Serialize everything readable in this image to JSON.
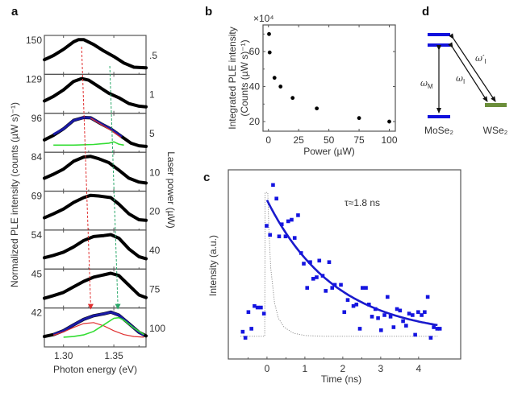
{
  "panels": {
    "a": {
      "label": "a"
    },
    "b": {
      "label": "b"
    },
    "c": {
      "label": "c"
    },
    "d": {
      "label": "d"
    }
  },
  "chart_data": [
    {
      "id": "a",
      "type": "line",
      "title": "",
      "xlabel": "Photon energy (eV)",
      "ylabel": "Normalized PLE intensity (counts (µW s)⁻¹)",
      "right_label": "Laser power (µW)",
      "xlim": [
        1.281,
        1.382
      ],
      "x_ticks": [
        1.3,
        1.35
      ],
      "x_tick_labels": [
        "1.30",
        "1.35"
      ],
      "colors": {
        "data": "#000000",
        "fit_total": "#1a1aa6",
        "fit_red": "#e03030",
        "fit_green": "#33dd33",
        "guide_red": "#e03030",
        "guide_green": "#2aa86a"
      },
      "guides": {
        "red": {
          "energy_top": 1.318,
          "energy_bottom": 1.327
        },
        "green": {
          "energy_top": 1.346,
          "energy_bottom": 1.354
        }
      },
      "subpanels": [
        {
          "power": ".5",
          "max_label": "150",
          "data": [
            [
              1.281,
              0.35
            ],
            [
              1.29,
              0.48
            ],
            [
              1.3,
              0.67
            ],
            [
              1.31,
              0.9
            ],
            [
              1.315,
              0.97
            ],
            [
              1.32,
              0.97
            ],
            [
              1.33,
              0.82
            ],
            [
              1.34,
              0.62
            ],
            [
              1.35,
              0.45
            ],
            [
              1.36,
              0.25
            ],
            [
              1.37,
              0.12
            ],
            [
              1.382,
              0.1
            ]
          ]
        },
        {
          "power": "1",
          "max_label": "129",
          "data": [
            [
              1.281,
              0.28
            ],
            [
              1.29,
              0.42
            ],
            [
              1.3,
              0.62
            ],
            [
              1.31,
              0.88
            ],
            [
              1.318,
              0.97
            ],
            [
              1.325,
              0.92
            ],
            [
              1.335,
              0.72
            ],
            [
              1.345,
              0.52
            ],
            [
              1.355,
              0.38
            ],
            [
              1.365,
              0.2
            ],
            [
              1.375,
              0.12
            ],
            [
              1.382,
              0.1
            ]
          ]
        },
        {
          "power": "5",
          "max_label": "96",
          "data": [
            [
              1.281,
              0.28
            ],
            [
              1.29,
              0.42
            ],
            [
              1.3,
              0.62
            ],
            [
              1.31,
              0.88
            ],
            [
              1.32,
              0.97
            ],
            [
              1.327,
              0.96
            ],
            [
              1.337,
              0.78
            ],
            [
              1.347,
              0.62
            ],
            [
              1.357,
              0.4
            ],
            [
              1.367,
              0.18
            ],
            [
              1.375,
              0.1
            ],
            [
              1.382,
              0.08
            ]
          ],
          "fit_total": [
            [
              1.29,
              0.45
            ],
            [
              1.3,
              0.62
            ],
            [
              1.31,
              0.88
            ],
            [
              1.32,
              0.97
            ],
            [
              1.327,
              0.96
            ],
            [
              1.337,
              0.78
            ],
            [
              1.347,
              0.62
            ],
            [
              1.358,
              0.38
            ]
          ],
          "fit_red": [
            [
              1.327,
              0.95
            ],
            [
              1.337,
              0.76
            ],
            [
              1.347,
              0.58
            ],
            [
              1.357,
              0.36
            ]
          ],
          "fit_green": [
            [
              1.29,
              0.12
            ],
            [
              1.31,
              0.12
            ],
            [
              1.33,
              0.14
            ],
            [
              1.345,
              0.18
            ],
            [
              1.35,
              0.22
            ],
            [
              1.355,
              0.15
            ],
            [
              1.36,
              0.12
            ]
          ]
        },
        {
          "power": "10",
          "max_label": "84",
          "data": [
            [
              1.281,
              0.3
            ],
            [
              1.29,
              0.42
            ],
            [
              1.3,
              0.58
            ],
            [
              1.31,
              0.82
            ],
            [
              1.32,
              0.95
            ],
            [
              1.327,
              0.97
            ],
            [
              1.335,
              0.9
            ],
            [
              1.345,
              0.78
            ],
            [
              1.355,
              0.55
            ],
            [
              1.365,
              0.3
            ],
            [
              1.375,
              0.18
            ],
            [
              1.382,
              0.15
            ]
          ]
        },
        {
          "power": "20",
          "max_label": "69",
          "data": [
            [
              1.281,
              0.28
            ],
            [
              1.29,
              0.4
            ],
            [
              1.3,
              0.55
            ],
            [
              1.31,
              0.75
            ],
            [
              1.32,
              0.9
            ],
            [
              1.327,
              0.97
            ],
            [
              1.335,
              0.95
            ],
            [
              1.347,
              0.9
            ],
            [
              1.355,
              0.7
            ],
            [
              1.365,
              0.4
            ],
            [
              1.375,
              0.22
            ],
            [
              1.382,
              0.2
            ]
          ]
        },
        {
          "power": "40",
          "max_label": "54",
          "data": [
            [
              1.281,
              0.25
            ],
            [
              1.29,
              0.32
            ],
            [
              1.3,
              0.42
            ],
            [
              1.31,
              0.58
            ],
            [
              1.32,
              0.78
            ],
            [
              1.33,
              0.9
            ],
            [
              1.34,
              0.93
            ],
            [
              1.347,
              0.96
            ],
            [
              1.355,
              0.85
            ],
            [
              1.365,
              0.52
            ],
            [
              1.375,
              0.28
            ],
            [
              1.382,
              0.22
            ]
          ]
        },
        {
          "power": "75",
          "max_label": "45",
          "data": [
            [
              1.281,
              0.2
            ],
            [
              1.29,
              0.28
            ],
            [
              1.3,
              0.38
            ],
            [
              1.31,
              0.55
            ],
            [
              1.32,
              0.72
            ],
            [
              1.33,
              0.85
            ],
            [
              1.34,
              0.92
            ],
            [
              1.347,
              0.97
            ],
            [
              1.355,
              0.9
            ],
            [
              1.365,
              0.6
            ],
            [
              1.375,
              0.3
            ],
            [
              1.382,
              0.22
            ]
          ]
        },
        {
          "power": "100",
          "max_label": "42",
          "data": [
            [
              1.281,
              0.22
            ],
            [
              1.29,
              0.28
            ],
            [
              1.3,
              0.4
            ],
            [
              1.31,
              0.58
            ],
            [
              1.32,
              0.75
            ],
            [
              1.33,
              0.86
            ],
            [
              1.34,
              0.92
            ],
            [
              1.347,
              0.97
            ],
            [
              1.355,
              0.88
            ],
            [
              1.365,
              0.62
            ],
            [
              1.375,
              0.35
            ],
            [
              1.382,
              0.24
            ]
          ],
          "fit_total": [
            [
              1.29,
              0.28
            ],
            [
              1.3,
              0.4
            ],
            [
              1.31,
              0.58
            ],
            [
              1.32,
              0.75
            ],
            [
              1.33,
              0.86
            ],
            [
              1.34,
              0.92
            ],
            [
              1.347,
              0.97
            ],
            [
              1.355,
              0.88
            ],
            [
              1.365,
              0.62
            ],
            [
              1.375,
              0.35
            ],
            [
              1.38,
              0.26
            ]
          ],
          "fit_red": [
            [
              1.29,
              0.26
            ],
            [
              1.3,
              0.36
            ],
            [
              1.31,
              0.5
            ],
            [
              1.32,
              0.62
            ],
            [
              1.33,
              0.65
            ],
            [
              1.34,
              0.55
            ],
            [
              1.35,
              0.4
            ],
            [
              1.36,
              0.28
            ],
            [
              1.37,
              0.22
            ],
            [
              1.38,
              0.2
            ]
          ],
          "fit_green": [
            [
              1.3,
              0.2
            ],
            [
              1.31,
              0.22
            ],
            [
              1.32,
              0.27
            ],
            [
              1.33,
              0.38
            ],
            [
              1.34,
              0.58
            ],
            [
              1.35,
              0.78
            ],
            [
              1.355,
              0.8
            ],
            [
              1.36,
              0.72
            ],
            [
              1.37,
              0.48
            ],
            [
              1.38,
              0.28
            ]
          ]
        }
      ]
    },
    {
      "id": "b",
      "type": "scatter",
      "title": "",
      "xlabel": "Power (µW)",
      "ylabel_line1": "Integrated PLE intensity",
      "ylabel_line2": "(Counts (µW s)⁻¹)",
      "y_multiplier": "×10⁴",
      "xlim": [
        -4.5,
        105
      ],
      "ylim": [
        14.5,
        75.2
      ],
      "x_ticks": [
        0,
        25,
        50,
        75,
        100
      ],
      "x_tick_labels": [
        "0",
        "25",
        "50",
        "75",
        "100"
      ],
      "y_ticks": [
        20,
        40,
        60
      ],
      "y_tick_labels": [
        "20",
        "40",
        "60"
      ],
      "x": [
        0.5,
        1,
        5,
        10,
        20,
        40,
        75,
        100
      ],
      "y": [
        70,
        59.5,
        45,
        40,
        33.5,
        27.5,
        22,
        20
      ],
      "color": "#000000"
    },
    {
      "id": "c",
      "type": "scatter",
      "title": "",
      "annotation": "τ≈1.8 ns",
      "xlabel": "Time (ns)",
      "ylabel": "Intensity (a.u.)",
      "xlim": [
        -1.02,
        5.11
      ],
      "ylim": [
        -0.15,
        1.1
      ],
      "x_ticks": [
        0,
        1,
        2,
        3,
        4
      ],
      "x_tick_labels": [
        "0",
        "1",
        "2",
        "3",
        "4"
      ],
      "points_color": "#1414e0",
      "fit_color": "#1a1acc",
      "fit": {
        "model": "exponential decay",
        "amplitude": 0.9,
        "tau_ns": 1.8,
        "t_start": 0,
        "t_end": 4.5
      },
      "irf": [
        [
          -0.7,
          0
        ],
        [
          -0.06,
          0
        ],
        [
          -0.05,
          0.95
        ],
        [
          0.02,
          0.95
        ],
        [
          0.05,
          0.7
        ],
        [
          0.1,
          0.45
        ],
        [
          0.2,
          0.22
        ],
        [
          0.3,
          0.12
        ],
        [
          0.45,
          0.06
        ],
        [
          0.7,
          0.02
        ],
        [
          1.0,
          0.005
        ],
        [
          1.5,
          0
        ],
        [
          4.5,
          0
        ]
      ],
      "t": [
        -0.64,
        -0.57,
        -0.49,
        -0.41,
        -0.33,
        -0.25,
        -0.16,
        -0.08,
        -0.01,
        0.08,
        0.16,
        0.25,
        0.32,
        0.39,
        0.49,
        0.56,
        0.65,
        0.73,
        0.82,
        0.9,
        0.97,
        1.06,
        1.14,
        1.22,
        1.31,
        1.38,
        1.47,
        1.55,
        1.64,
        1.72,
        1.79,
        1.95,
        2.04,
        2.13,
        2.28,
        2.36,
        2.45,
        2.52,
        2.61,
        2.69,
        2.77,
        2.86,
        2.93,
        3.01,
        3.1,
        3.18,
        3.26,
        3.34,
        3.43,
        3.51,
        3.59,
        3.67,
        3.75,
        3.84,
        3.91,
        3.99,
        4.08,
        4.16,
        4.24,
        4.32,
        4.4,
        4.49,
        4.56
      ],
      "intensity": [
        0.03,
        -0.01,
        0.16,
        0.05,
        0.2,
        0.19,
        0.19,
        0.15,
        0.73,
        0.67,
        1.0,
        0.91,
        0.66,
        0.74,
        0.66,
        0.76,
        0.77,
        0.65,
        0.8,
        0.55,
        0.48,
        0.32,
        0.49,
        0.38,
        0.39,
        0.5,
        0.4,
        0.3,
        0.49,
        0.32,
        0.34,
        0.34,
        0.16,
        0.24,
        0.2,
        0.21,
        0.05,
        0.32,
        0.32,
        0.21,
        0.13,
        0.18,
        0.12,
        0.04,
        0.14,
        0.26,
        0.13,
        0.06,
        0.18,
        0.17,
        0.1,
        0.07,
        0.15,
        0.14,
        0.01,
        0.16,
        0.14,
        0.16,
        0.26,
        -0.01,
        0.06,
        0.05,
        0.05
      ]
    }
  ],
  "diagram_d": {
    "type": "energy-level diagram",
    "left_material": "MoSe₂",
    "right_material": "WSe₂",
    "left_color": "#1010dd",
    "right_color": "#6b8e3a",
    "labels": {
      "omega_M": "ωM",
      "omega_I": "ωI",
      "omega_I_prime": "ω′I"
    },
    "label_parts": {
      "omega_M": {
        "base": "ω",
        "sub": "M"
      },
      "omega_I": {
        "base": "ω",
        "sub": "I"
      },
      "omega_I_prime": {
        "base": "ω′",
        "sub": "I"
      }
    }
  }
}
